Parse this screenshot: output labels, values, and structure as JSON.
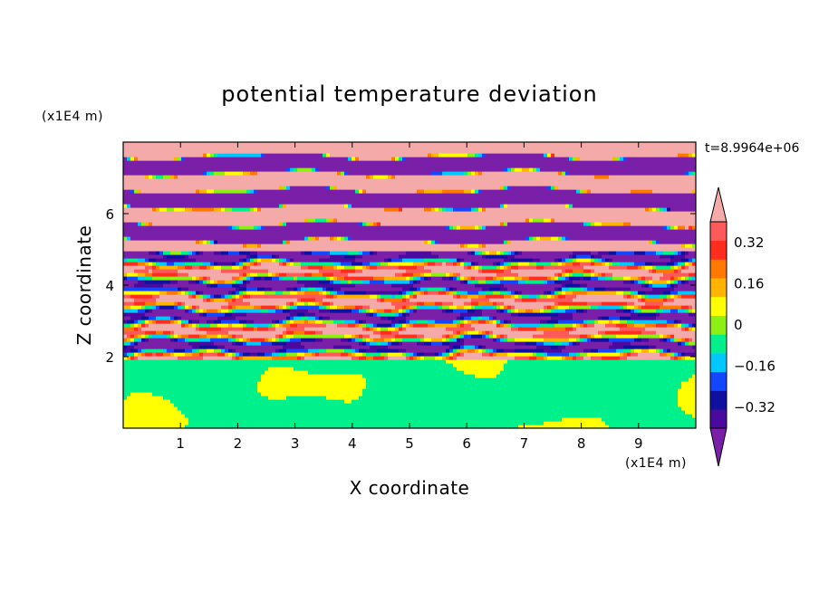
{
  "chart_data": {
    "type": "heatmap",
    "title": "potential temperature deviation",
    "xlabel": "X coordinate",
    "ylabel": "Z coordinate",
    "x_unit": "(x1E4 m)",
    "y_unit": "(x1E4 m)",
    "time_label": "t=8.9964e+06",
    "xlim": [
      0,
      10
    ],
    "ylim": [
      0,
      8
    ],
    "x_ticks": [
      {
        "value": 1,
        "label": "1"
      },
      {
        "value": 2,
        "label": "2"
      },
      {
        "value": 3,
        "label": "3"
      },
      {
        "value": 4,
        "label": "4"
      },
      {
        "value": 5,
        "label": "5"
      },
      {
        "value": 6,
        "label": "6"
      },
      {
        "value": 7,
        "label": "7"
      },
      {
        "value": 8,
        "label": "8"
      },
      {
        "value": 9,
        "label": "9"
      }
    ],
    "y_ticks": [
      {
        "value": 2,
        "label": "2"
      },
      {
        "value": 4,
        "label": "4"
      },
      {
        "value": 6,
        "label": "6"
      }
    ],
    "colorbar": {
      "levels": [
        -0.48,
        -0.4,
        -0.32,
        -0.24,
        -0.16,
        -0.08,
        0,
        0.08,
        0.16,
        0.24,
        0.32,
        0.4,
        0.48
      ],
      "colors": [
        "#7a1fa8",
        "#4b0a9e",
        "#0f0fa0",
        "#1446ff",
        "#00c8ff",
        "#00f08c",
        "#8cf014",
        "#ffff00",
        "#ffb400",
        "#ff7800",
        "#ff2d1e",
        "#ff5a5a",
        "#f5aaaa"
      ],
      "tick_labels": [
        {
          "value": 0.32,
          "label": "0.32"
        },
        {
          "value": 0.16,
          "label": "0.16"
        },
        {
          "value": 0,
          "label": "0"
        },
        {
          "value": -0.16,
          "label": "−0.16"
        },
        {
          "value": -0.32,
          "label": "−0.32"
        }
      ],
      "extend": "both"
    },
    "field_description": {
      "lower_layer": {
        "z_range": [
          0,
          2
        ],
        "dominant_value": -0.04,
        "patch_value": 0.04
      },
      "turbulent_layer": {
        "z_range": [
          2,
          5
        ],
        "values_range": [
          -0.48,
          0.48
        ]
      },
      "upper_banded_layer": {
        "z_range": [
          5,
          8
        ],
        "band_values": [
          -0.48,
          0.48
        ]
      }
    }
  }
}
